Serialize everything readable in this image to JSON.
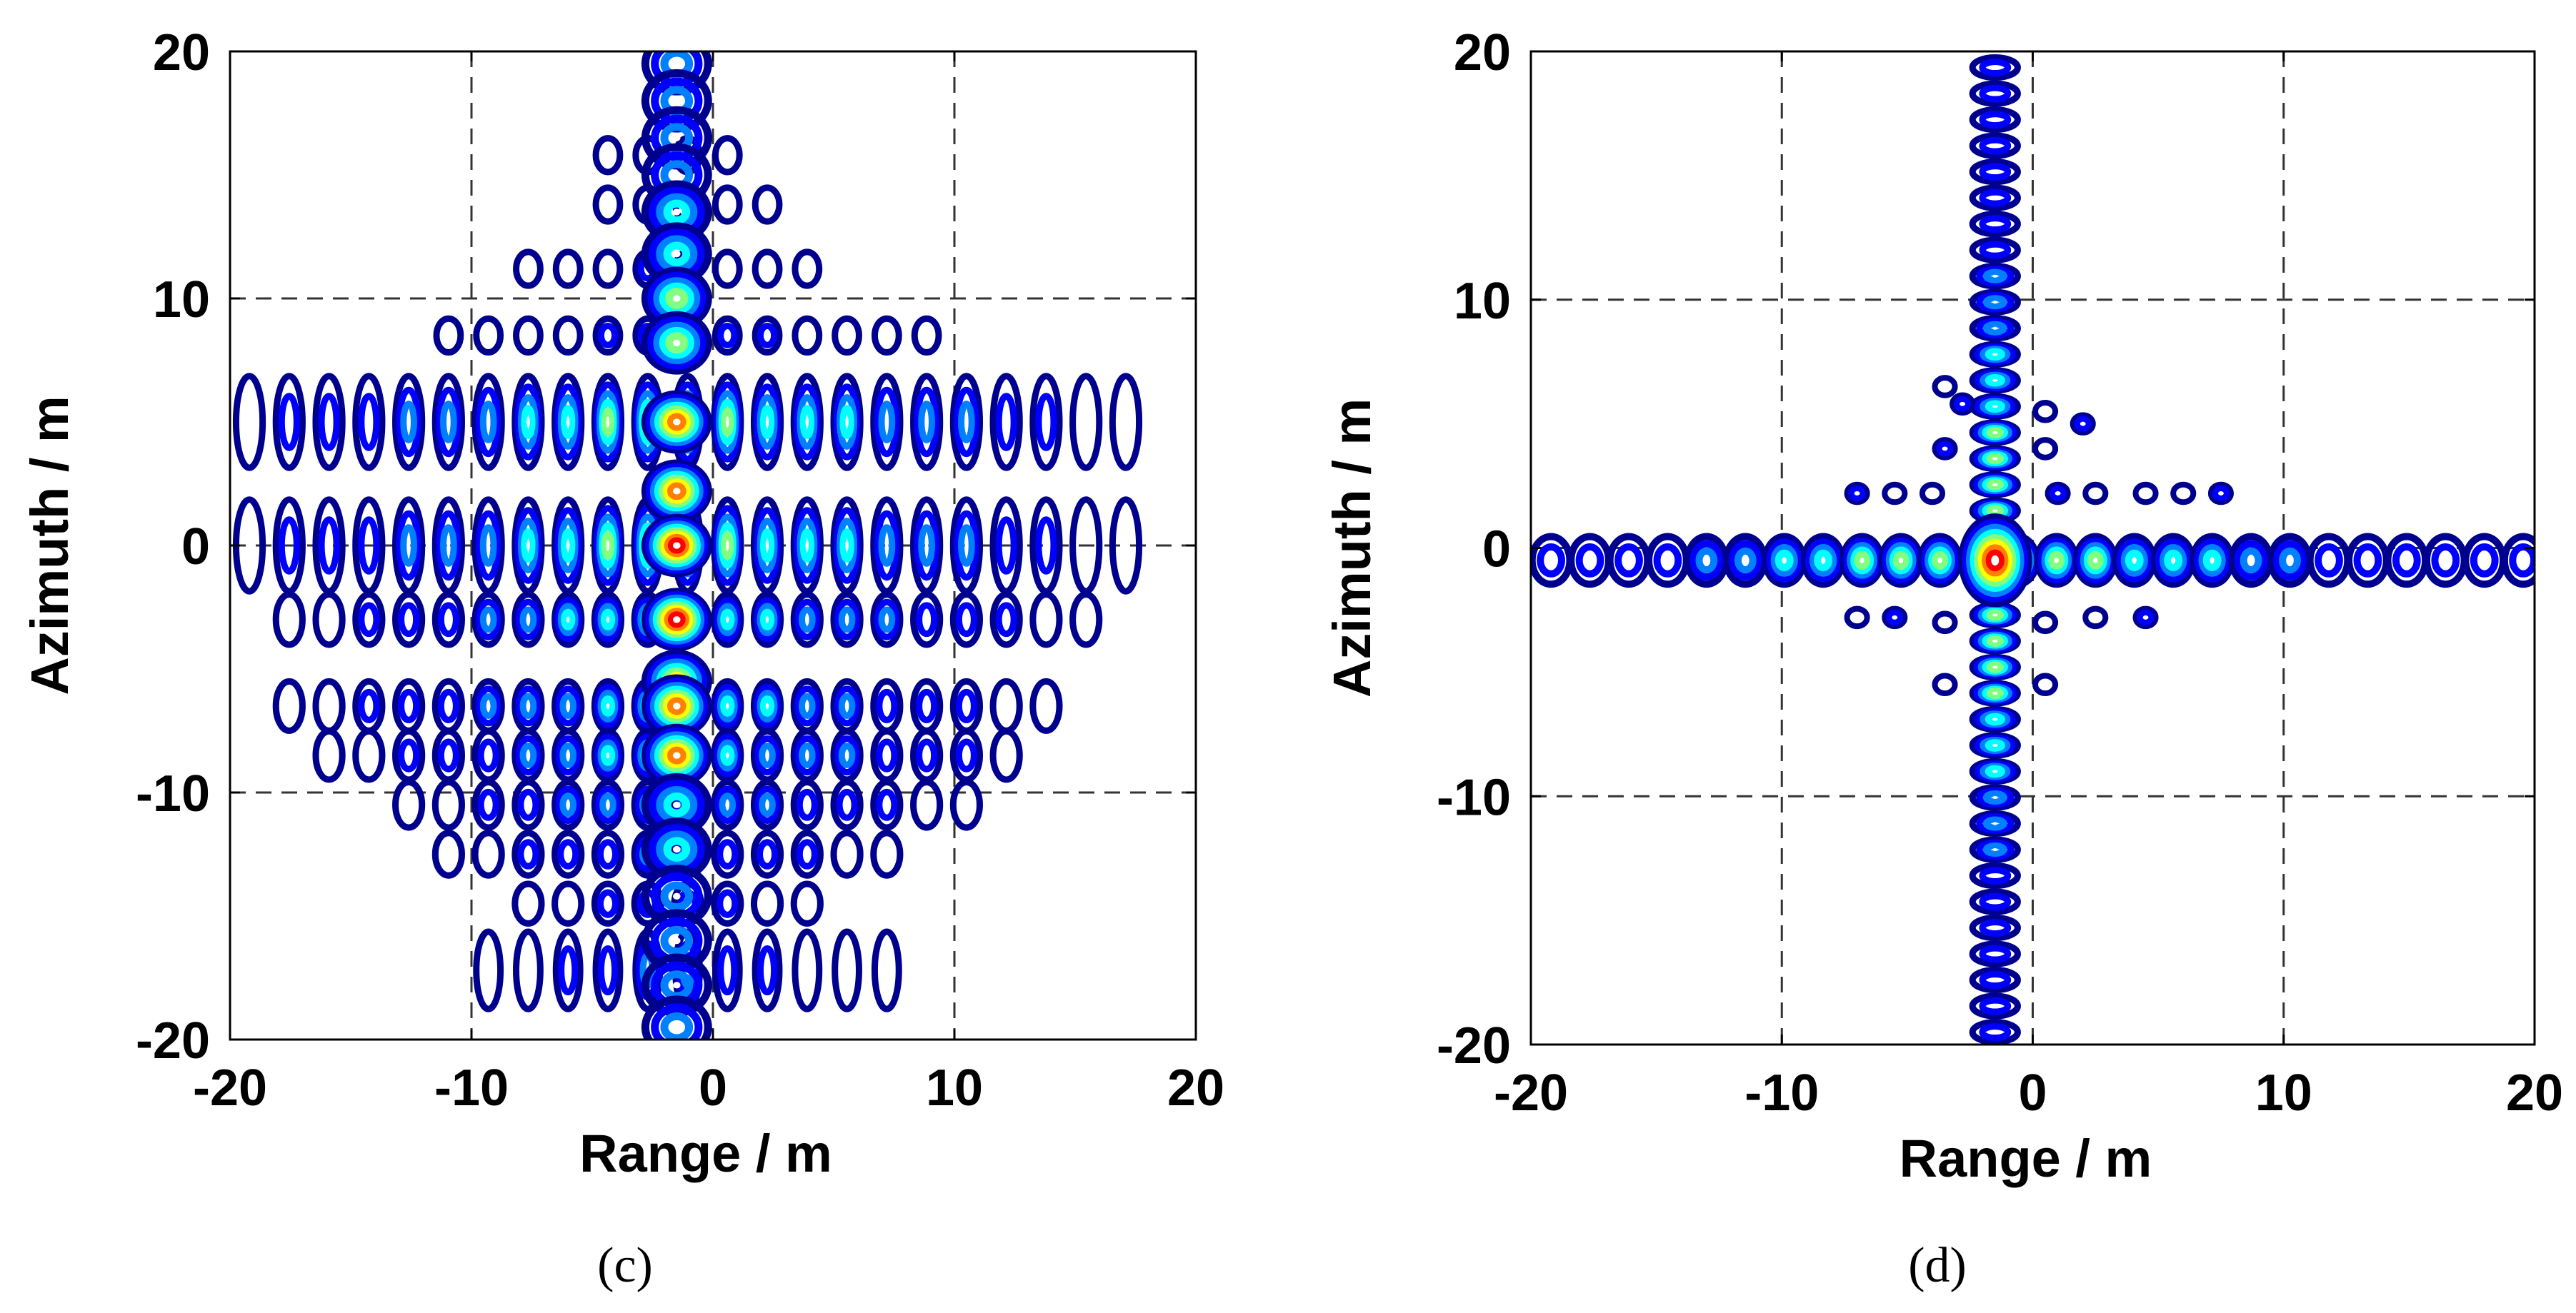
{
  "chart_data": [
    {
      "type": "contour",
      "panel_label": "(c)",
      "xlabel": "Range / m",
      "ylabel": "Azimuth / m",
      "xlim": [
        -20,
        20
      ],
      "ylim": [
        -20,
        20
      ],
      "xticks": [
        -20,
        -10,
        0,
        10,
        20
      ],
      "yticks": [
        -20,
        -10,
        0,
        10,
        20
      ],
      "grid": true,
      "colormap": [
        "#00008f",
        "#0000ff",
        "#0080ff",
        "#00ffff",
        "#80ff80",
        "#ffff00",
        "#ff8000",
        "#ff0000"
      ],
      "peak_position": [
        -1.5,
        0
      ],
      "description_values": {
        "vertical_lobe_x": -1.5,
        "horizontal_rows_y": [
          5,
          0,
          -3,
          -6.5,
          -8.5,
          -10.5,
          -12.5,
          -14.5
        ],
        "horizontal_extent": [
          -20,
          20
        ]
      }
    },
    {
      "type": "contour",
      "panel_label": "(d)",
      "xlabel": "Range / m",
      "ylabel": "Azimuth / m",
      "xlim": [
        -20,
        20
      ],
      "ylim": [
        -20,
        20
      ],
      "xticks": [
        -20,
        -10,
        0,
        10,
        20
      ],
      "yticks": [
        -20,
        -10,
        0,
        10,
        20
      ],
      "grid": true,
      "colormap": [
        "#00008f",
        "#0000ff",
        "#0080ff",
        "#00ffff",
        "#80ff80",
        "#ffff00",
        "#ff8000",
        "#ff0000"
      ],
      "peak_position": [
        -1.5,
        -0.5
      ],
      "description_values": {
        "vertical_lobe_x": -1.5,
        "horizontal_lobe_y": -0.5,
        "horizontal_extent": [
          -20,
          20
        ],
        "vertical_extent": [
          -20,
          20
        ]
      }
    }
  ]
}
